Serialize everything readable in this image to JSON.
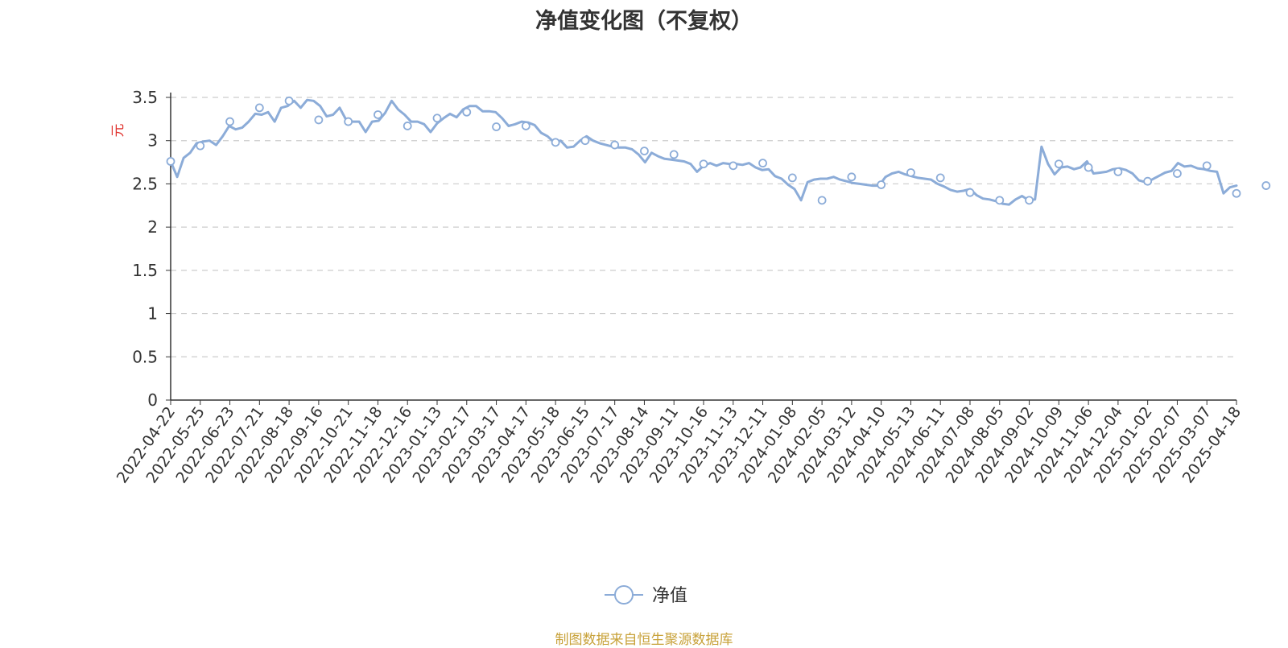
{
  "chart_data": {
    "type": "line",
    "title": "净值变化图（不复权）",
    "ylabel": "元",
    "xlabel": "",
    "ylim": [
      0,
      3.5
    ],
    "y_ticks": [
      "0",
      "0.5",
      "1",
      "1.5",
      "2",
      "2.5",
      "3",
      "3.5"
    ],
    "grid": true,
    "legend_placement": "bottom-center",
    "x_tick_labels": [
      "2022-04-22",
      "2022-05-25",
      "2022-06-23",
      "2022-07-21",
      "2022-08-18",
      "2022-09-16",
      "2022-10-21",
      "2022-11-18",
      "2022-12-16",
      "2023-01-13",
      "2023-02-17",
      "2023-03-17",
      "2023-04-17",
      "2023-05-18",
      "2023-06-15",
      "2023-07-17",
      "2023-08-14",
      "2023-09-11",
      "2023-10-16",
      "2023-11-13",
      "2023-12-11",
      "2024-01-08",
      "2024-02-05",
      "2024-03-12",
      "2024-04-10",
      "2024-05-13",
      "2024-06-11",
      "2024-07-08",
      "2024-08-05",
      "2024-09-02",
      "2024-10-09",
      "2024-11-06",
      "2024-12-04",
      "2025-01-02",
      "2025-02-07",
      "2025-03-07",
      "2025-04-18"
    ],
    "series": [
      {
        "name": "净值",
        "color": "#8cacd8",
        "values": [
          2.76,
          2.58,
          2.8,
          2.86,
          2.97,
          2.99,
          3.0,
          2.95,
          3.05,
          3.17,
          3.13,
          3.15,
          3.22,
          3.31,
          3.3,
          3.33,
          3.22,
          3.38,
          3.4,
          3.46,
          3.38,
          3.47,
          3.46,
          3.4,
          3.28,
          3.3,
          3.38,
          3.24,
          3.22,
          3.22,
          3.1,
          3.22,
          3.23,
          3.32,
          3.46,
          3.36,
          3.3,
          3.22,
          3.22,
          3.19,
          3.1,
          3.2,
          3.26,
          3.31,
          3.27,
          3.36,
          3.4,
          3.4,
          3.34,
          3.34,
          3.33,
          3.26,
          3.17,
          3.19,
          3.22,
          3.21,
          3.18,
          3.09,
          3.05,
          2.98,
          3.0,
          2.92,
          2.93,
          3.0,
          3.05,
          3.0,
          2.97,
          2.95,
          2.93,
          2.92,
          2.92,
          2.9,
          2.84,
          2.75,
          2.86,
          2.82,
          2.79,
          2.78,
          2.77,
          2.76,
          2.73,
          2.64,
          2.71,
          2.74,
          2.71,
          2.74,
          2.73,
          2.73,
          2.72,
          2.74,
          2.69,
          2.66,
          2.67,
          2.59,
          2.56,
          2.49,
          2.44,
          2.31,
          2.52,
          2.55,
          2.56,
          2.56,
          2.58,
          2.55,
          2.53,
          2.51,
          2.5,
          2.49,
          2.48,
          2.48,
          2.58,
          2.62,
          2.64,
          2.61,
          2.59,
          2.57,
          2.56,
          2.55,
          2.5,
          2.47,
          2.43,
          2.41,
          2.42,
          2.44,
          2.37,
          2.33,
          2.32,
          2.3,
          2.27,
          2.26,
          2.32,
          2.36,
          2.31,
          2.32,
          2.93,
          2.73,
          2.61,
          2.69,
          2.7,
          2.67,
          2.69,
          2.76,
          2.62,
          2.63,
          2.64,
          2.67,
          2.68,
          2.66,
          2.62,
          2.54,
          2.52,
          2.55,
          2.59,
          2.63,
          2.65,
          2.74,
          2.7,
          2.71,
          2.68,
          2.67,
          2.65,
          2.64,
          2.39,
          2.46,
          2.48
        ],
        "markers": [
          2.76,
          2.94,
          3.22,
          3.38,
          3.46,
          3.24,
          3.22,
          3.3,
          3.17,
          3.26,
          3.33,
          3.16,
          3.17,
          2.98,
          3.0,
          2.95,
          2.88,
          2.84,
          2.73,
          2.71,
          2.74,
          2.57,
          2.31,
          2.58,
          2.49,
          2.63,
          2.57,
          2.4,
          2.31,
          2.31,
          2.73,
          2.69,
          2.64,
          2.53,
          2.62,
          2.71,
          2.39,
          2.48
        ]
      }
    ]
  },
  "legend": {
    "label": "净值"
  },
  "source_note": "制图数据来自恒生聚源数据库"
}
